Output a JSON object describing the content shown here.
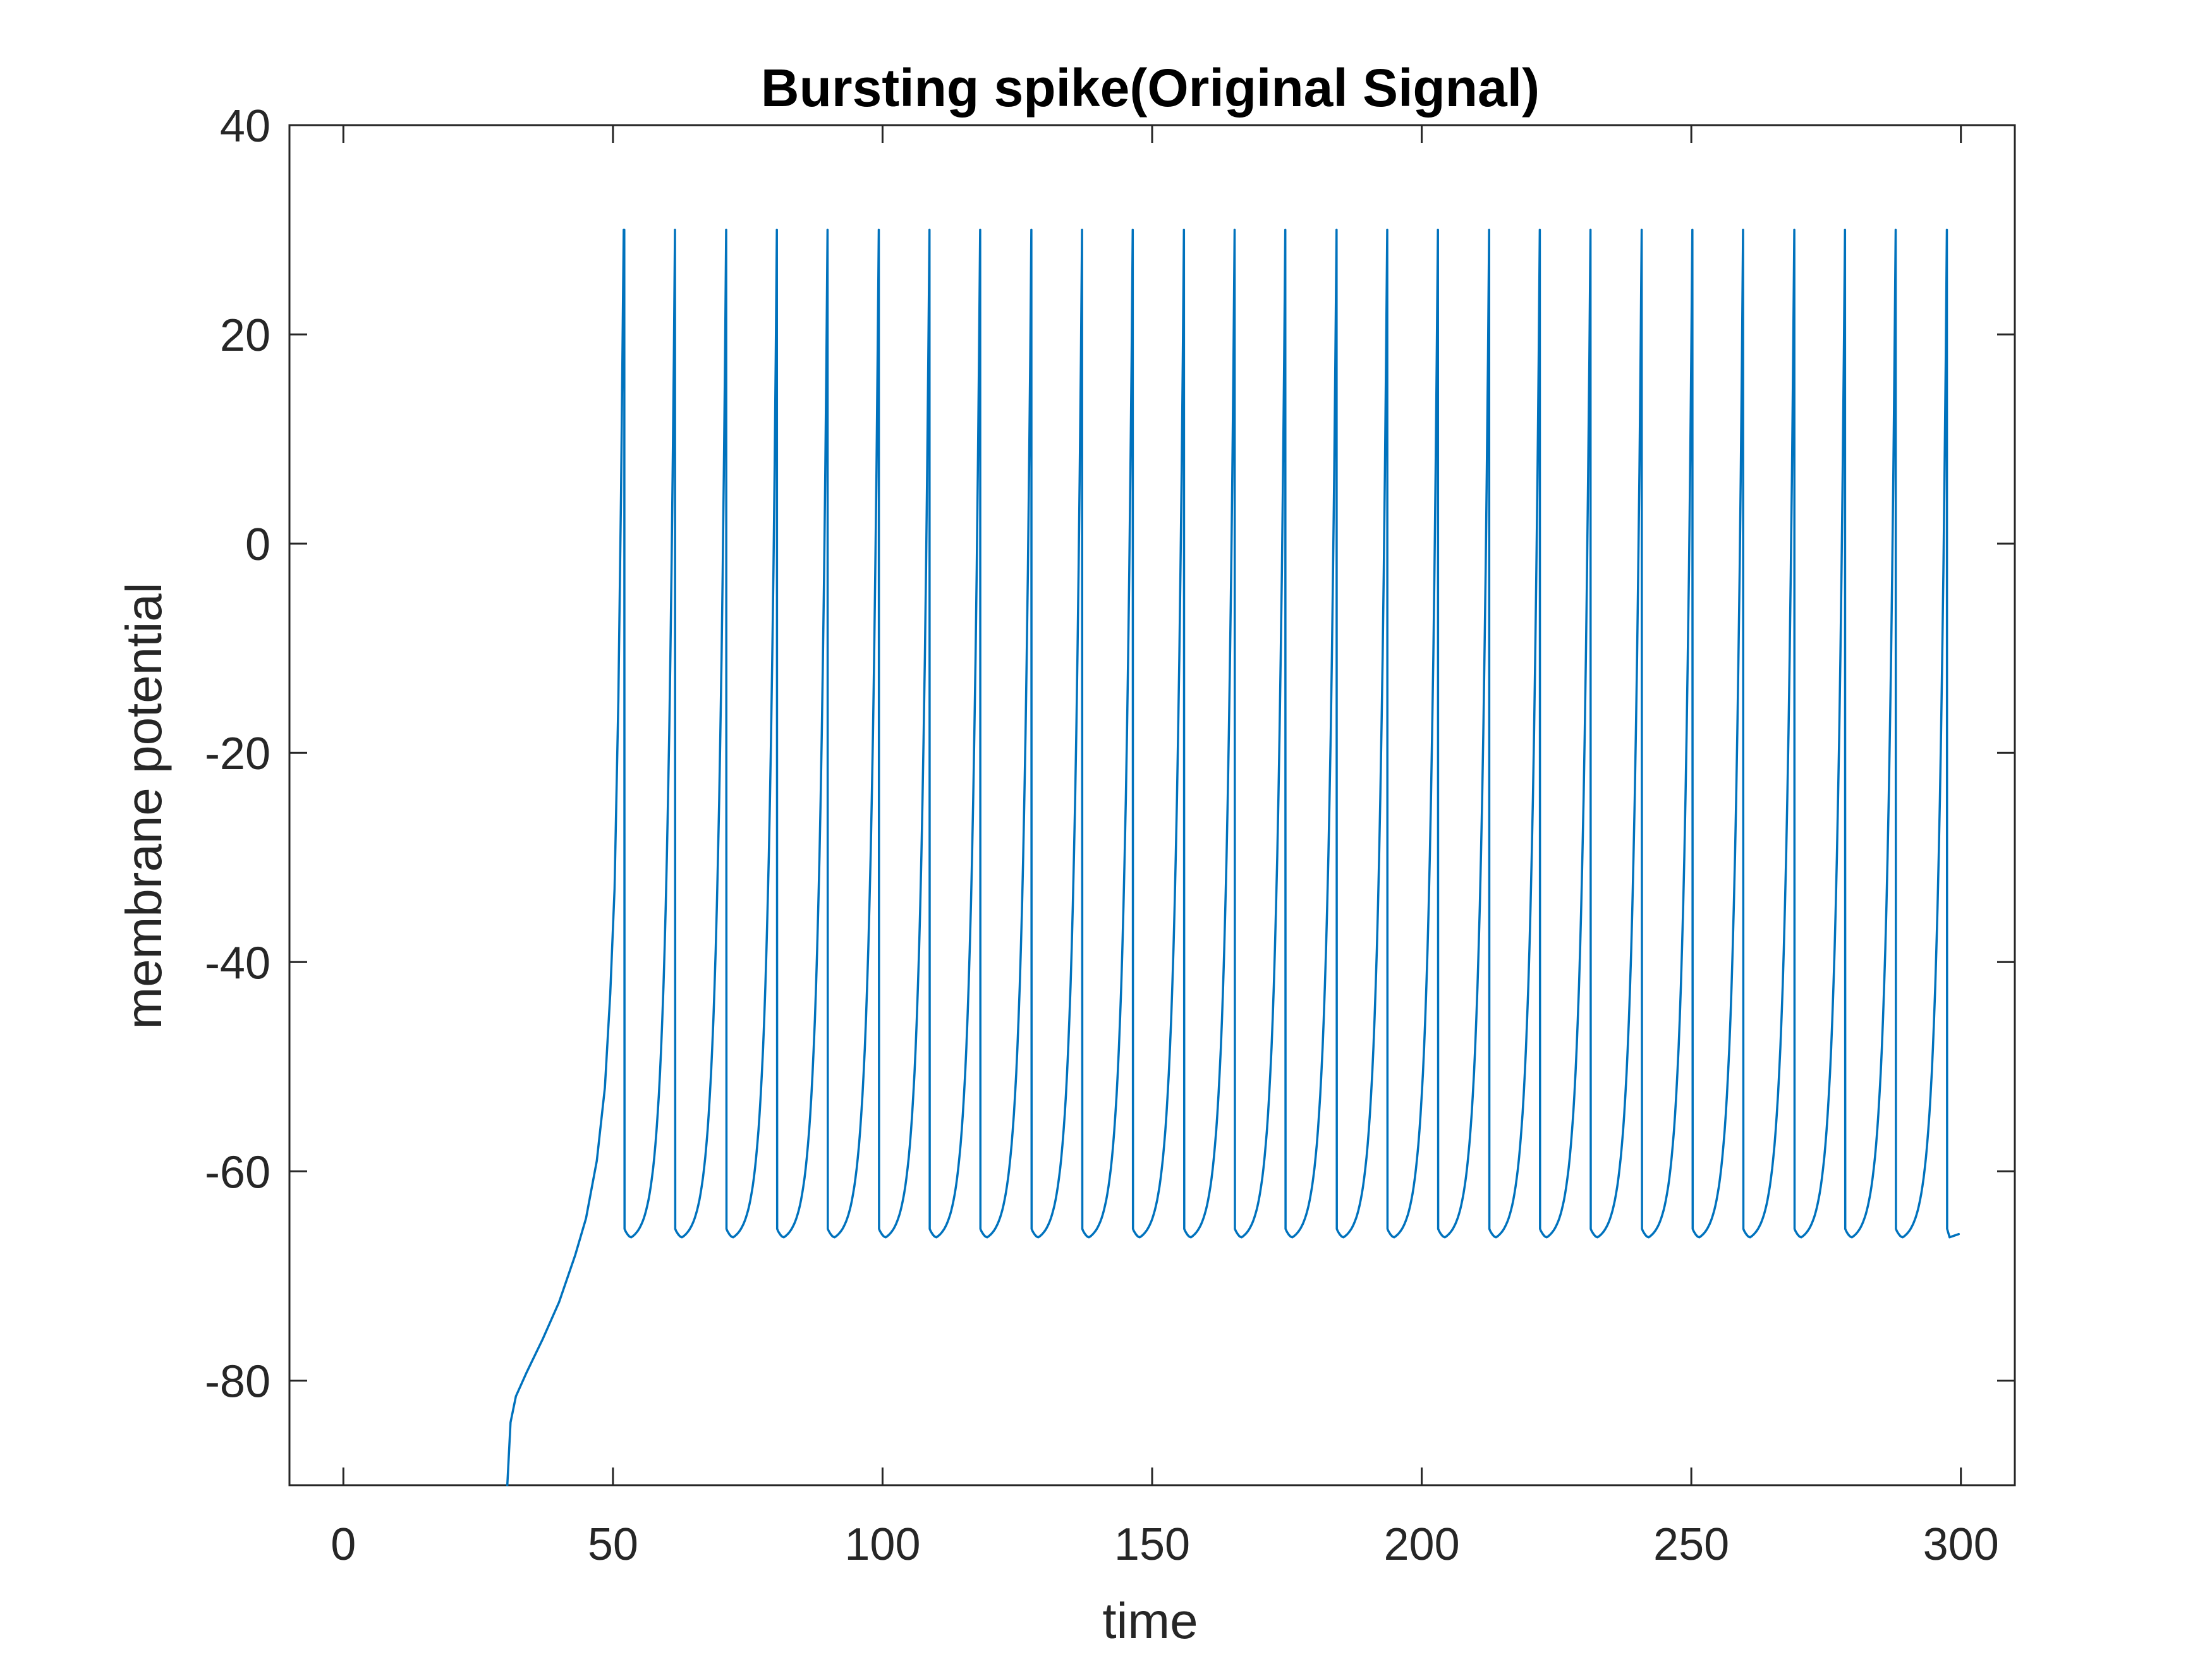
{
  "chart_data": {
    "type": "line",
    "title": "Bursting spike(Original Signal)",
    "xlabel": "time",
    "ylabel": "membrane potential",
    "xlim": [
      -10,
      310
    ],
    "ylim": [
      -90,
      40
    ],
    "xticks": [
      0,
      50,
      100,
      150,
      200,
      250,
      300
    ],
    "yticks": [
      -80,
      -60,
      -40,
      -20,
      0,
      20,
      40
    ],
    "grid": false,
    "line_color": "#0072BD",
    "series": [
      {
        "spike_peak": 30,
        "reset_value": -65.5,
        "trough_value": -66.3,
        "onset_points": [
          [
            30.4,
            -90
          ],
          [
            31,
            -84
          ],
          [
            32,
            -81.5
          ],
          [
            34,
            -79.2
          ],
          [
            37,
            -76
          ],
          [
            40,
            -72.5
          ],
          [
            43,
            -68
          ],
          [
            45,
            -64.5
          ],
          [
            47,
            -59
          ],
          [
            48.5,
            -52
          ],
          [
            49.5,
            -43
          ],
          [
            50.3,
            -33
          ],
          [
            51,
            -15
          ],
          [
            51.5,
            5
          ],
          [
            52,
            30
          ]
        ],
        "spike_times": [
          52.1,
          61.5,
          71.0,
          80.4,
          89.8,
          99.3,
          108.7,
          118.1,
          127.6,
          137.0,
          146.4,
          155.9,
          165.3,
          174.7,
          184.2,
          193.6,
          203.0,
          212.5,
          221.9,
          231.3,
          240.8,
          250.2,
          259.6,
          269.1,
          278.5,
          287.9,
          297.4
        ],
        "end_time": 299.6
      }
    ]
  }
}
